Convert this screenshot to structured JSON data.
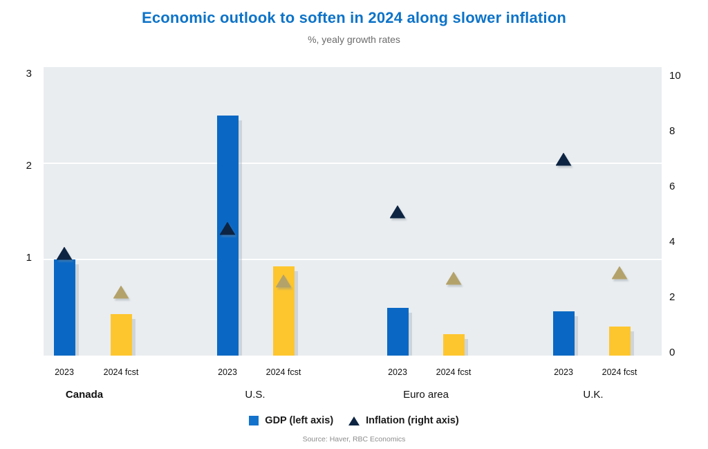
{
  "header": {
    "title": "Economic outlook to soften in 2024 along slower inflation",
    "subtitle": "%, yealy growth rates"
  },
  "legend": {
    "gdp_label": "GDP (left axis)",
    "inflation_label": "Inflation (right axis)"
  },
  "source": "Source: Haver, RBC Economics",
  "colors": {
    "title": "#0d73c8",
    "gdp": "#0a68c4",
    "gdp_fcst": "#fec62e",
    "inflation": "#0d2442",
    "inflation_fcst": "#b3a26a",
    "plot_bg": "#e9edf0"
  },
  "chart_data": {
    "type": "bar",
    "title": "Economic outlook to soften in 2024 along slower inflation",
    "subtitle": "%, yealy growth rates",
    "categories": [
      {
        "label": "Canada",
        "emphasis": true
      },
      {
        "label": "U.S.",
        "emphasis": false
      },
      {
        "label": "Euro area",
        "emphasis": false
      },
      {
        "label": "U.K.",
        "emphasis": false
      }
    ],
    "period_labels": [
      "2023",
      "2024 fcst"
    ],
    "series": [
      {
        "name": "GDP 2023",
        "axis": "left",
        "marker": "bar",
        "color_key": "gdp",
        "values": [
          1.0,
          2.5,
          0.5,
          0.46
        ]
      },
      {
        "name": "GDP 2024 fcst",
        "axis": "left",
        "marker": "bar",
        "color_key": "gdp_fcst",
        "values": [
          0.43,
          0.93,
          0.22,
          0.3
        ]
      },
      {
        "name": "Inflation 2023",
        "axis": "right",
        "marker": "triangle",
        "color_key": "inflation",
        "values": [
          3.6,
          4.5,
          5.1,
          7.0
        ]
      },
      {
        "name": "Inflation 2024 fcst",
        "axis": "right",
        "marker": "triangle",
        "color_key": "inflation_fcst",
        "values": [
          2.2,
          2.6,
          2.7,
          2.9
        ]
      }
    ],
    "left_axis": {
      "min": 0,
      "max": 3,
      "ticks": [
        1,
        2,
        3
      ]
    },
    "right_axis": {
      "min": 0,
      "max": 10,
      "ticks": [
        0,
        2,
        4,
        6,
        8,
        10
      ]
    },
    "legend": [
      "GDP (left axis)",
      "Inflation (right axis)"
    ],
    "grid": true,
    "legend_position": "bottom"
  }
}
